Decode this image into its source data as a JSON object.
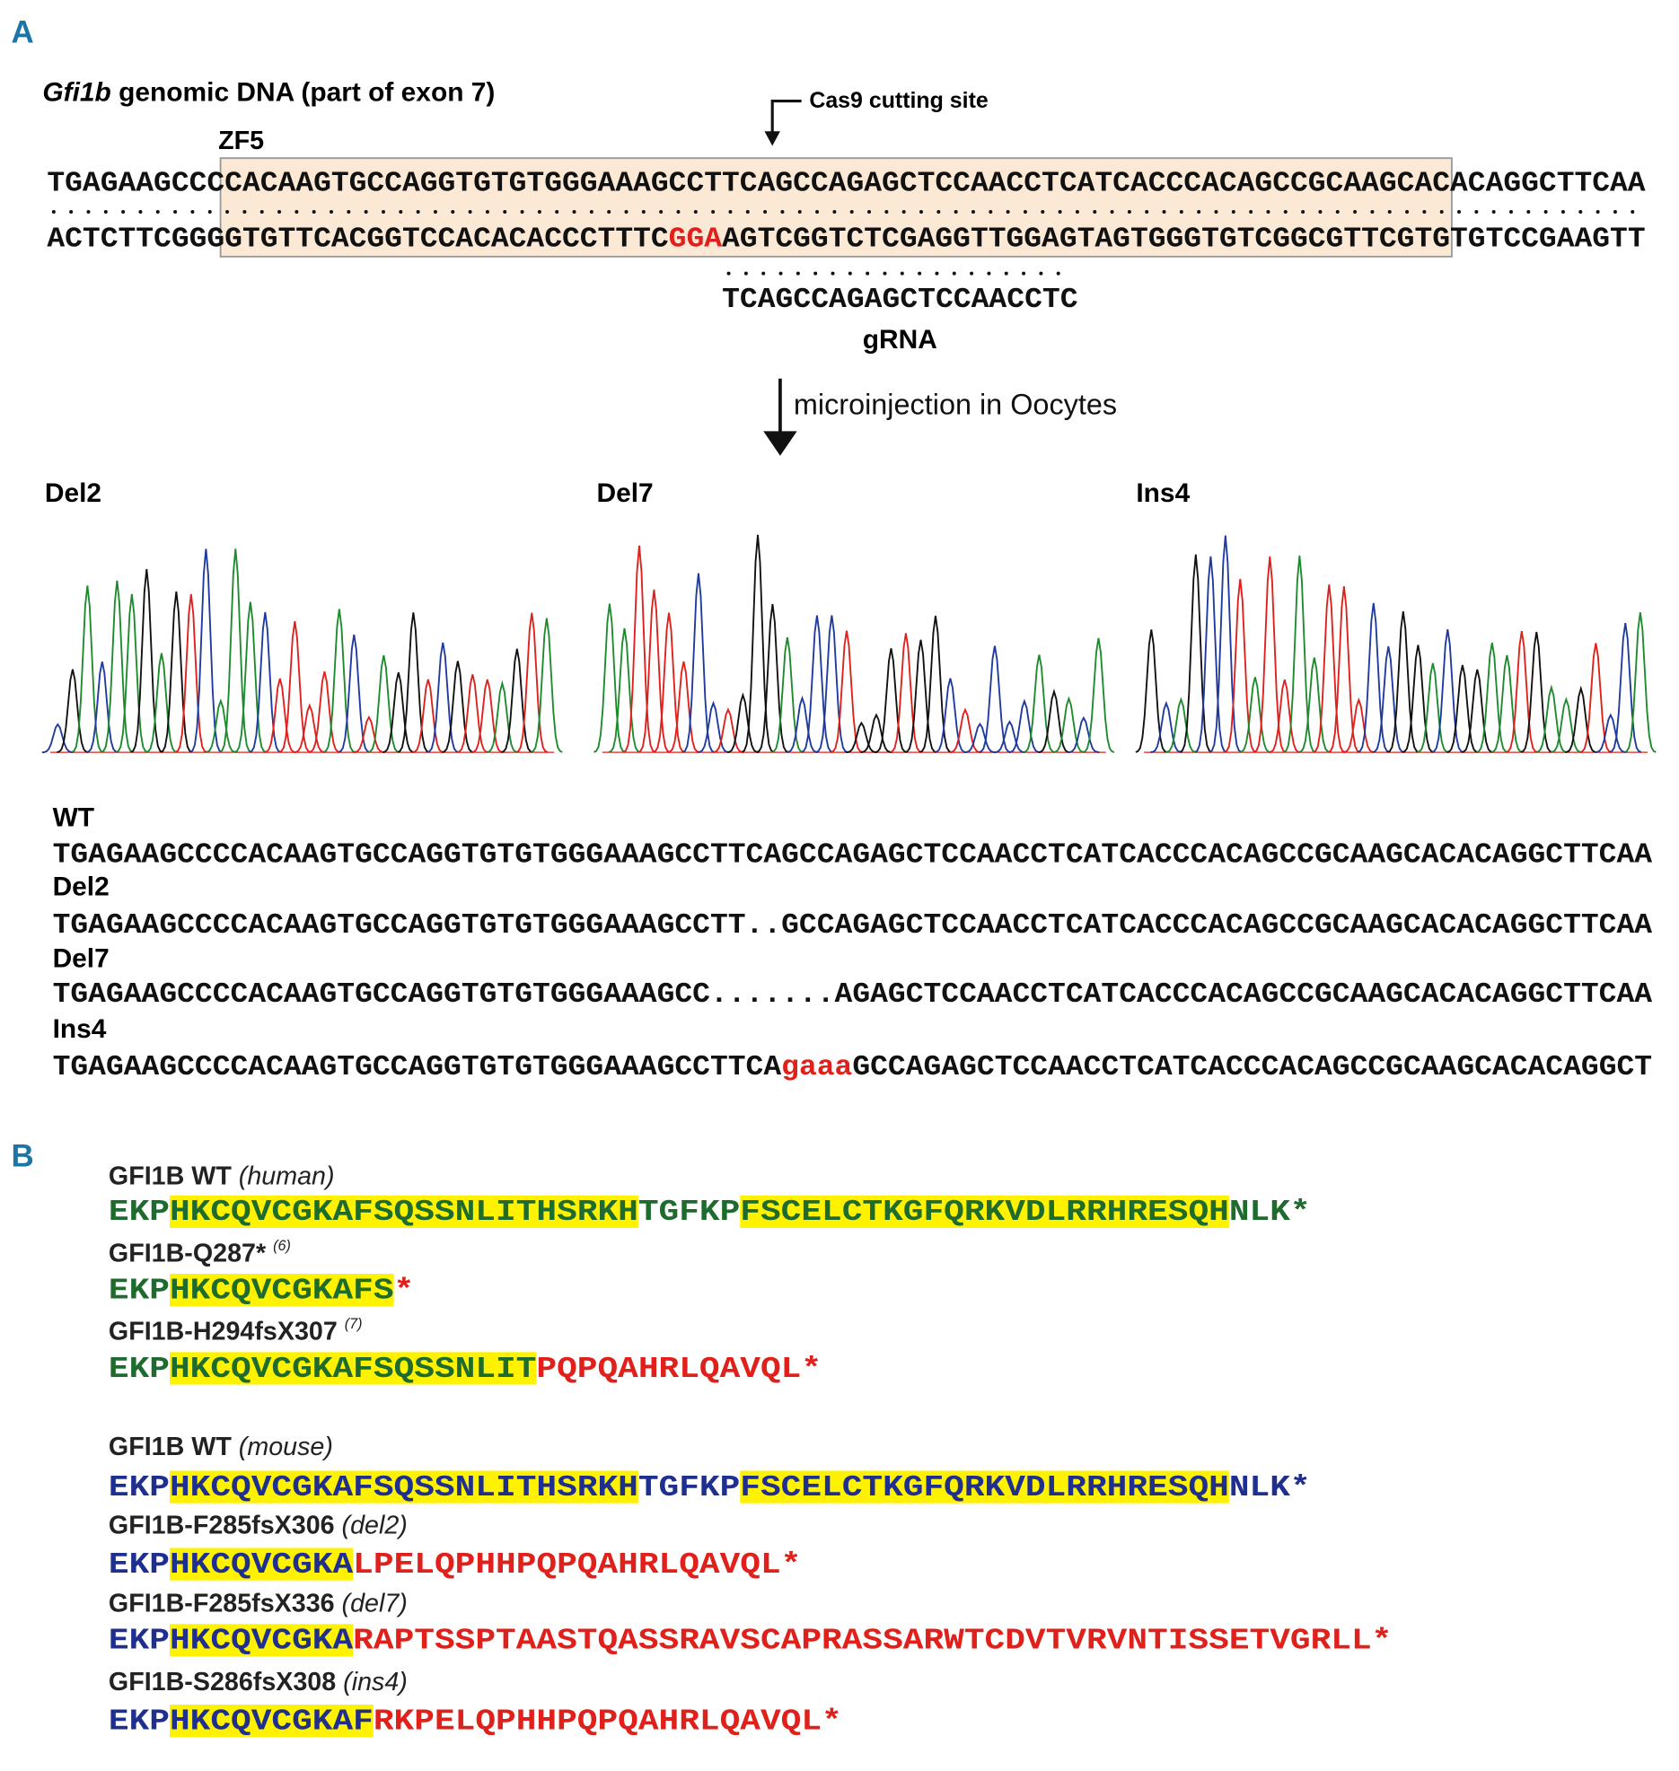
{
  "panel_a": {
    "label": "A",
    "title_italic": "Gfi1b",
    "title_rest": " genomic DNA (part of exon 7)",
    "cas9_label": "Cas9 cutting site",
    "zf_label": "ZF5",
    "top_strand": "TGAGAAGCCCCACAAGTGCCAGGTGTGTGGGAAAGCCTTCAGCCAGAGCTCCAACCTCATCACCCACAGCCGCAAGCACACAGGCTTCAA",
    "bottom_strand": [
      {
        "text": "ACTCTTCGGGGTGTTCACGGTCCACACACCCTTTC",
        "color": "#111111"
      },
      {
        "text": "GGA",
        "color": "#e0201b"
      },
      {
        "text": "AGTCGGTCTCGAGGTTGGAGTAGTGGGTGTCGGCGTTCGTGTGTCCGAAGTT",
        "color": "#111111"
      }
    ],
    "grna_seq": "TCAGCCAGAGCTCCAACCTC",
    "grna_label": "gRNA",
    "step_label": "microinjection in Oocytes",
    "traces": [
      "Del2",
      "Del7",
      "Ins4"
    ],
    "alignment": [
      {
        "name": "WT",
        "segments": [
          {
            "text": "TGAGAAGCCCCACAAGTGCCAGGTGTGTGGGAAAGCCTTCAGCCAGAGCTCCAACCTCATCACCCACAGCCGCAAGCACACAGGCTTCAA",
            "color": "#111111"
          }
        ]
      },
      {
        "name": "Del2",
        "segments": [
          {
            "text": "TGAGAAGCCCCACAAGTGCCAGGTGTGTGGGAAAGCCTT..GCCAGAGCTCCAACCTCATCACCCACAGCCGCAAGCACACAGGCTTCAA",
            "color": "#111111"
          }
        ]
      },
      {
        "name": "Del7",
        "segments": [
          {
            "text": "TGAGAAGCCCCACAAGTGCCAGGTGTGTGGGAAAGCC.......AGAGCTCCAACCTCATCACCCACAGCCGCAAGCACACAGGCTTCAA",
            "color": "#111111"
          }
        ]
      },
      {
        "name": "Ins4",
        "segments": [
          {
            "text": "TGAGAAGCCCCACAAGTGCCAGGTGTGTGGGAAAGCCTTCA",
            "color": "#111111"
          },
          {
            "text": "gaaa",
            "color": "#e0201b"
          },
          {
            "text": "GCCAGAGCTCCAACCTCATCACCCACAGCCGCAAGCACACAGGCT",
            "color": "#111111"
          }
        ]
      }
    ]
  },
  "panel_b": {
    "label": "B",
    "entries": [
      {
        "name": "GFI1B WT",
        "note": "(human)",
        "segments": [
          {
            "text": "EKP",
            "color": "#1e6b2e",
            "highlight": false
          },
          {
            "text": "HKCQVCGKAFSQSSNLITHSRKH",
            "color": "#1e6b2e",
            "highlight": true
          },
          {
            "text": "TGFKP",
            "color": "#1e6b2e",
            "highlight": false
          },
          {
            "text": "FSCELCTKGFQRKVDLRRHRESQH",
            "color": "#1e6b2e",
            "highlight": true
          },
          {
            "text": "NLK*",
            "color": "#1e6b2e",
            "highlight": false
          }
        ]
      },
      {
        "name": "GFI1B-Q287*",
        "ref": "(6)",
        "segments": [
          {
            "text": "EKP",
            "color": "#1e6b2e",
            "highlight": false
          },
          {
            "text": "HKCQVCGKAFS",
            "color": "#1e6b2e",
            "highlight": true
          },
          {
            "text": "*",
            "color": "#e0201b",
            "highlight": false
          }
        ]
      },
      {
        "name": "GFI1B-H294fsX307",
        "ref": "(7)",
        "segments": [
          {
            "text": "EKP",
            "color": "#1e6b2e",
            "highlight": false
          },
          {
            "text": "HKCQVCGKAFSQSSNLIT",
            "color": "#1e6b2e",
            "highlight": true
          },
          {
            "text": "PQPQAHRLQAVQL*",
            "color": "#e0201b",
            "highlight": false
          }
        ]
      },
      {
        "name": "GFI1B WT",
        "note": "(mouse)",
        "segments": [
          {
            "text": "EKP",
            "color": "#1f2f8f",
            "highlight": false
          },
          {
            "text": "HKCQVCGKAFSQSSNLITHSRKH",
            "color": "#1f2f8f",
            "highlight": true
          },
          {
            "text": "TGFKP",
            "color": "#1f2f8f",
            "highlight": false
          },
          {
            "text": "FSCELCTKGFQRKVDLRRHRESQH",
            "color": "#1f2f8f",
            "highlight": true
          },
          {
            "text": "NLK*",
            "color": "#1f2f8f",
            "highlight": false
          }
        ]
      },
      {
        "name": "GFI1B-F285fsX306",
        "note": "(del2)",
        "segments": [
          {
            "text": "EKP",
            "color": "#1f2f8f",
            "highlight": false
          },
          {
            "text": "HKCQVCGKA",
            "color": "#1f2f8f",
            "highlight": true
          },
          {
            "text": "LPELQPHHPQPQAHRLQAVQL*",
            "color": "#e0201b",
            "highlight": false
          }
        ]
      },
      {
        "name": "GFI1B-F285fsX336",
        "note": "(del7)",
        "segments": [
          {
            "text": "EKP",
            "color": "#1f2f8f",
            "highlight": false
          },
          {
            "text": "HKCQVCGKA",
            "color": "#1f2f8f",
            "highlight": true
          },
          {
            "text": "RAPTSSPTAASTQASSRAVSCAPRASSARWTCDVTVRVNTISSETVGRLL*",
            "color": "#e0201b",
            "highlight": false
          }
        ]
      },
      {
        "name": "GFI1B-S286fsX308",
        "note": "(ins4)",
        "segments": [
          {
            "text": "EKP",
            "color": "#1f2f8f",
            "highlight": false
          },
          {
            "text": "HKCQVCGKAF",
            "color": "#1f2f8f",
            "highlight": true
          },
          {
            "text": "RKPELQPHHPQPQAHRLQAVQL*",
            "color": "#e0201b",
            "highlight": false
          }
        ]
      }
    ]
  }
}
